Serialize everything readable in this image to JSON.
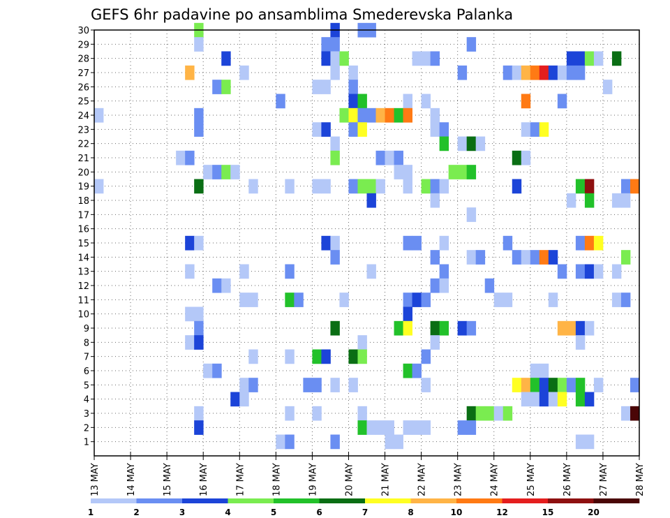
{
  "chart_data": {
    "type": "heatmap",
    "title": "GEFS 6hr padavine po ansamblima Smederevska Palanka",
    "xlabel": "",
    "ylabel": "",
    "x_ticks": [
      "13 MAY",
      "14 MAY",
      "15 MAY",
      "16 MAY",
      "17 MAY",
      "18 MAY",
      "19 MAY",
      "20 MAY",
      "21 MAY",
      "22 MAY",
      "23 MAY",
      "24 MAY",
      "25 MAY",
      "26 MAY",
      "27 MAY",
      "28 MAY"
    ],
    "x_range_steps": [
      0,
      60
    ],
    "y_ticks": [
      1,
      2,
      3,
      4,
      5,
      6,
      7,
      8,
      9,
      10,
      11,
      12,
      13,
      14,
      15,
      16,
      17,
      18,
      19,
      20,
      21,
      22,
      23,
      24,
      25,
      26,
      27,
      28,
      29,
      30
    ],
    "y_range": [
      0,
      30
    ],
    "grid": true,
    "legend": {
      "placement": "bottom",
      "labels": [
        "1",
        "2",
        "3",
        "4",
        "5",
        "6",
        "7",
        "8",
        "10",
        "12",
        "15",
        "20"
      ],
      "colors": [
        "#b4c8f8",
        "#6a8ef2",
        "#1c44d8",
        "#7aec50",
        "#22c12a",
        "#0a6e14",
        "#ffff22",
        "#ffb446",
        "#ff7a14",
        "#e41e1e",
        "#8e1010",
        "#4a0606"
      ]
    },
    "cells": [
      [
        12,
        30,
        3
      ],
      [
        27,
        30,
        2
      ],
      [
        30,
        30,
        1
      ],
      [
        31,
        30,
        1
      ],
      [
        12,
        29,
        0
      ],
      [
        26,
        29,
        1
      ],
      [
        27,
        29,
        1
      ],
      [
        42,
        29,
        1
      ],
      [
        15,
        28,
        2
      ],
      [
        26,
        28,
        2
      ],
      [
        27,
        28,
        0
      ],
      [
        28,
        28,
        3
      ],
      [
        36,
        28,
        0
      ],
      [
        37,
        28,
        0
      ],
      [
        38,
        28,
        1
      ],
      [
        53,
        28,
        2
      ],
      [
        54,
        28,
        2
      ],
      [
        55,
        28,
        3
      ],
      [
        56,
        28,
        0
      ],
      [
        58,
        28,
        5
      ],
      [
        11,
        27,
        7
      ],
      [
        17,
        27,
        0
      ],
      [
        27,
        27,
        0
      ],
      [
        29,
        27,
        0
      ],
      [
        41,
        27,
        1
      ],
      [
        46,
        27,
        1
      ],
      [
        47,
        27,
        0
      ],
      [
        48,
        27,
        7
      ],
      [
        49,
        27,
        8
      ],
      [
        50,
        27,
        9
      ],
      [
        51,
        27,
        2
      ],
      [
        52,
        27,
        0
      ],
      [
        53,
        27,
        1
      ],
      [
        54,
        27,
        1
      ],
      [
        14,
        26,
        1
      ],
      [
        15,
        26,
        3
      ],
      [
        25,
        26,
        0
      ],
      [
        26,
        26,
        0
      ],
      [
        29,
        26,
        1
      ],
      [
        57,
        26,
        0
      ],
      [
        21,
        25,
        1
      ],
      [
        29,
        25,
        2
      ],
      [
        30,
        25,
        4
      ],
      [
        35,
        25,
        0
      ],
      [
        37,
        25,
        0
      ],
      [
        48,
        25,
        8
      ],
      [
        52,
        25,
        1
      ],
      [
        1,
        24,
        0
      ],
      [
        12,
        24,
        1
      ],
      [
        28,
        24,
        3
      ],
      [
        29,
        24,
        6
      ],
      [
        30,
        24,
        1
      ],
      [
        31,
        24,
        1
      ],
      [
        32,
        24,
        7
      ],
      [
        33,
        24,
        8
      ],
      [
        34,
        24,
        4
      ],
      [
        35,
        24,
        8
      ],
      [
        38,
        24,
        0
      ],
      [
        12,
        23,
        1
      ],
      [
        25,
        23,
        0
      ],
      [
        26,
        23,
        2
      ],
      [
        29,
        23,
        1
      ],
      [
        30,
        23,
        6
      ],
      [
        38,
        23,
        0
      ],
      [
        39,
        23,
        1
      ],
      [
        48,
        23,
        0
      ],
      [
        49,
        23,
        1
      ],
      [
        50,
        23,
        6
      ],
      [
        27,
        22,
        0
      ],
      [
        39,
        22,
        4
      ],
      [
        41,
        22,
        0
      ],
      [
        42,
        22,
        5
      ],
      [
        43,
        22,
        0
      ],
      [
        10,
        21,
        0
      ],
      [
        11,
        21,
        1
      ],
      [
        27,
        21,
        3
      ],
      [
        32,
        21,
        1
      ],
      [
        33,
        21,
        0
      ],
      [
        34,
        21,
        1
      ],
      [
        47,
        21,
        5
      ],
      [
        48,
        21,
        0
      ],
      [
        13,
        20,
        0
      ],
      [
        14,
        20,
        1
      ],
      [
        15,
        20,
        3
      ],
      [
        16,
        20,
        0
      ],
      [
        34,
        20,
        0
      ],
      [
        35,
        20,
        0
      ],
      [
        40,
        20,
        3
      ],
      [
        41,
        20,
        3
      ],
      [
        42,
        20,
        4
      ],
      [
        1,
        19,
        0
      ],
      [
        12,
        19,
        5
      ],
      [
        18,
        19,
        0
      ],
      [
        22,
        19,
        0
      ],
      [
        25,
        19,
        0
      ],
      [
        26,
        19,
        0
      ],
      [
        29,
        19,
        1
      ],
      [
        30,
        19,
        3
      ],
      [
        31,
        19,
        3
      ],
      [
        32,
        19,
        0
      ],
      [
        35,
        19,
        0
      ],
      [
        37,
        19,
        3
      ],
      [
        38,
        19,
        1
      ],
      [
        39,
        19,
        0
      ],
      [
        47,
        19,
        2
      ],
      [
        54,
        19,
        4
      ],
      [
        55,
        19,
        10
      ],
      [
        59,
        19,
        1
      ],
      [
        60,
        19,
        8
      ],
      [
        31,
        18,
        2
      ],
      [
        38,
        18,
        0
      ],
      [
        53,
        18,
        0
      ],
      [
        55,
        18,
        4
      ],
      [
        58,
        18,
        0
      ],
      [
        59,
        18,
        0
      ],
      [
        42,
        17,
        0
      ],
      [
        11,
        15,
        2
      ],
      [
        12,
        15,
        0
      ],
      [
        26,
        15,
        2
      ],
      [
        27,
        15,
        0
      ],
      [
        35,
        15,
        1
      ],
      [
        36,
        15,
        1
      ],
      [
        39,
        15,
        0
      ],
      [
        46,
        15,
        1
      ],
      [
        54,
        15,
        1
      ],
      [
        55,
        15,
        8
      ],
      [
        56,
        15,
        6
      ],
      [
        27,
        14,
        1
      ],
      [
        38,
        14,
        1
      ],
      [
        42,
        14,
        0
      ],
      [
        43,
        14,
        1
      ],
      [
        47,
        14,
        1
      ],
      [
        48,
        14,
        0
      ],
      [
        49,
        14,
        1
      ],
      [
        50,
        14,
        8
      ],
      [
        51,
        14,
        2
      ],
      [
        59,
        14,
        3
      ],
      [
        11,
        13,
        0
      ],
      [
        17,
        13,
        0
      ],
      [
        22,
        13,
        1
      ],
      [
        31,
        13,
        0
      ],
      [
        39,
        13,
        1
      ],
      [
        52,
        13,
        1
      ],
      [
        54,
        13,
        1
      ],
      [
        55,
        13,
        2
      ],
      [
        56,
        13,
        0
      ],
      [
        58,
        13,
        0
      ],
      [
        14,
        12,
        1
      ],
      [
        15,
        12,
        0
      ],
      [
        38,
        12,
        1
      ],
      [
        39,
        12,
        0
      ],
      [
        44,
        12,
        1
      ],
      [
        17,
        11,
        0
      ],
      [
        18,
        11,
        0
      ],
      [
        22,
        11,
        4
      ],
      [
        23,
        11,
        1
      ],
      [
        28,
        11,
        0
      ],
      [
        35,
        11,
        1
      ],
      [
        36,
        11,
        2
      ],
      [
        37,
        11,
        1
      ],
      [
        45,
        11,
        0
      ],
      [
        46,
        11,
        0
      ],
      [
        51,
        11,
        0
      ],
      [
        58,
        11,
        0
      ],
      [
        59,
        11,
        1
      ],
      [
        11,
        10,
        0
      ],
      [
        12,
        10,
        0
      ],
      [
        35,
        10,
        2
      ],
      [
        12,
        9,
        1
      ],
      [
        27,
        9,
        5
      ],
      [
        34,
        9,
        4
      ],
      [
        35,
        9,
        6
      ],
      [
        38,
        9,
        5
      ],
      [
        39,
        9,
        4
      ],
      [
        41,
        9,
        2
      ],
      [
        42,
        9,
        1
      ],
      [
        52,
        9,
        7
      ],
      [
        53,
        9,
        7
      ],
      [
        54,
        9,
        2
      ],
      [
        55,
        9,
        0
      ],
      [
        11,
        8,
        0
      ],
      [
        12,
        8,
        2
      ],
      [
        30,
        8,
        0
      ],
      [
        38,
        8,
        0
      ],
      [
        54,
        8,
        0
      ],
      [
        18,
        7,
        0
      ],
      [
        22,
        7,
        0
      ],
      [
        25,
        7,
        4
      ],
      [
        26,
        7,
        2
      ],
      [
        29,
        7,
        5
      ],
      [
        30,
        7,
        3
      ],
      [
        37,
        7,
        1
      ],
      [
        13,
        6,
        0
      ],
      [
        14,
        6,
        1
      ],
      [
        35,
        6,
        4
      ],
      [
        36,
        6,
        1
      ],
      [
        49,
        6,
        0
      ],
      [
        50,
        6,
        0
      ],
      [
        17,
        5,
        0
      ],
      [
        18,
        5,
        1
      ],
      [
        24,
        5,
        1
      ],
      [
        25,
        5,
        1
      ],
      [
        27,
        5,
        0
      ],
      [
        29,
        5,
        0
      ],
      [
        37,
        5,
        0
      ],
      [
        47,
        5,
        6
      ],
      [
        48,
        5,
        7
      ],
      [
        49,
        5,
        4
      ],
      [
        50,
        5,
        2
      ],
      [
        51,
        5,
        5
      ],
      [
        52,
        5,
        3
      ],
      [
        53,
        5,
        1
      ],
      [
        54,
        5,
        4
      ],
      [
        56,
        5,
        0
      ],
      [
        60,
        5,
        1
      ],
      [
        16,
        4,
        2
      ],
      [
        17,
        4,
        0
      ],
      [
        48,
        4,
        0
      ],
      [
        49,
        4,
        0
      ],
      [
        50,
        4,
        2
      ],
      [
        51,
        4,
        0
      ],
      [
        52,
        4,
        6
      ],
      [
        54,
        4,
        4
      ],
      [
        55,
        4,
        2
      ],
      [
        12,
        3,
        0
      ],
      [
        22,
        3,
        0
      ],
      [
        25,
        3,
        0
      ],
      [
        30,
        3,
        0
      ],
      [
        42,
        3,
        5
      ],
      [
        43,
        3,
        3
      ],
      [
        44,
        3,
        3
      ],
      [
        45,
        3,
        0
      ],
      [
        46,
        3,
        3
      ],
      [
        59,
        3,
        0
      ],
      [
        60,
        3,
        11
      ],
      [
        12,
        2,
        2
      ],
      [
        30,
        2,
        4
      ],
      [
        31,
        2,
        0
      ],
      [
        32,
        2,
        0
      ],
      [
        33,
        2,
        0
      ],
      [
        35,
        2,
        0
      ],
      [
        36,
        2,
        0
      ],
      [
        37,
        2,
        0
      ],
      [
        41,
        2,
        1
      ],
      [
        42,
        2,
        1
      ],
      [
        21,
        1,
        0
      ],
      [
        22,
        1,
        1
      ],
      [
        27,
        1,
        1
      ],
      [
        33,
        1,
        0
      ],
      [
        34,
        1,
        0
      ],
      [
        54,
        1,
        0
      ],
      [
        55,
        1,
        0
      ]
    ]
  }
}
